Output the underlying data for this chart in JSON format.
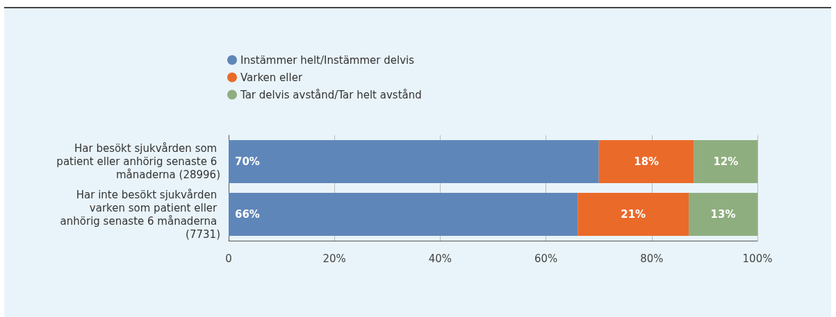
{
  "chart_data": {
    "type": "bar",
    "orientation": "horizontal",
    "stacked": true,
    "categories": [
      "Har besökt sjukvården som patient eller anhörig senaste 6 månaderna (28996)",
      "Har inte besökt sjukvården varken som patient eller anhörig senaste 6 månaderna (7731)"
    ],
    "series": [
      {
        "name": "Instämmer helt/Instämmer delvis",
        "color": "#5f86b9",
        "values": [
          70,
          66
        ],
        "value_labels": [
          "70%",
          "66%"
        ]
      },
      {
        "name": "Varken eller",
        "color": "#ea6a2a",
        "values": [
          18,
          21
        ],
        "value_labels": [
          "18%",
          "21%"
        ]
      },
      {
        "name": "Tar delvis avstånd/Tar helt avstånd",
        "color": "#8fae7f",
        "values": [
          12,
          13
        ],
        "value_labels": [
          "12%",
          "13%"
        ]
      }
    ],
    "xlim": [
      0,
      100
    ],
    "xticks": [
      0,
      {
        "value": 20,
        "label": "20%"
      },
      {
        "value": 40,
        "label": "40%"
      },
      {
        "value": 60,
        "label": "60%"
      },
      {
        "value": 80,
        "label": "80%"
      },
      {
        "value": 100,
        "label": "100%"
      }
    ],
    "grid": "x",
    "legend": "top"
  }
}
